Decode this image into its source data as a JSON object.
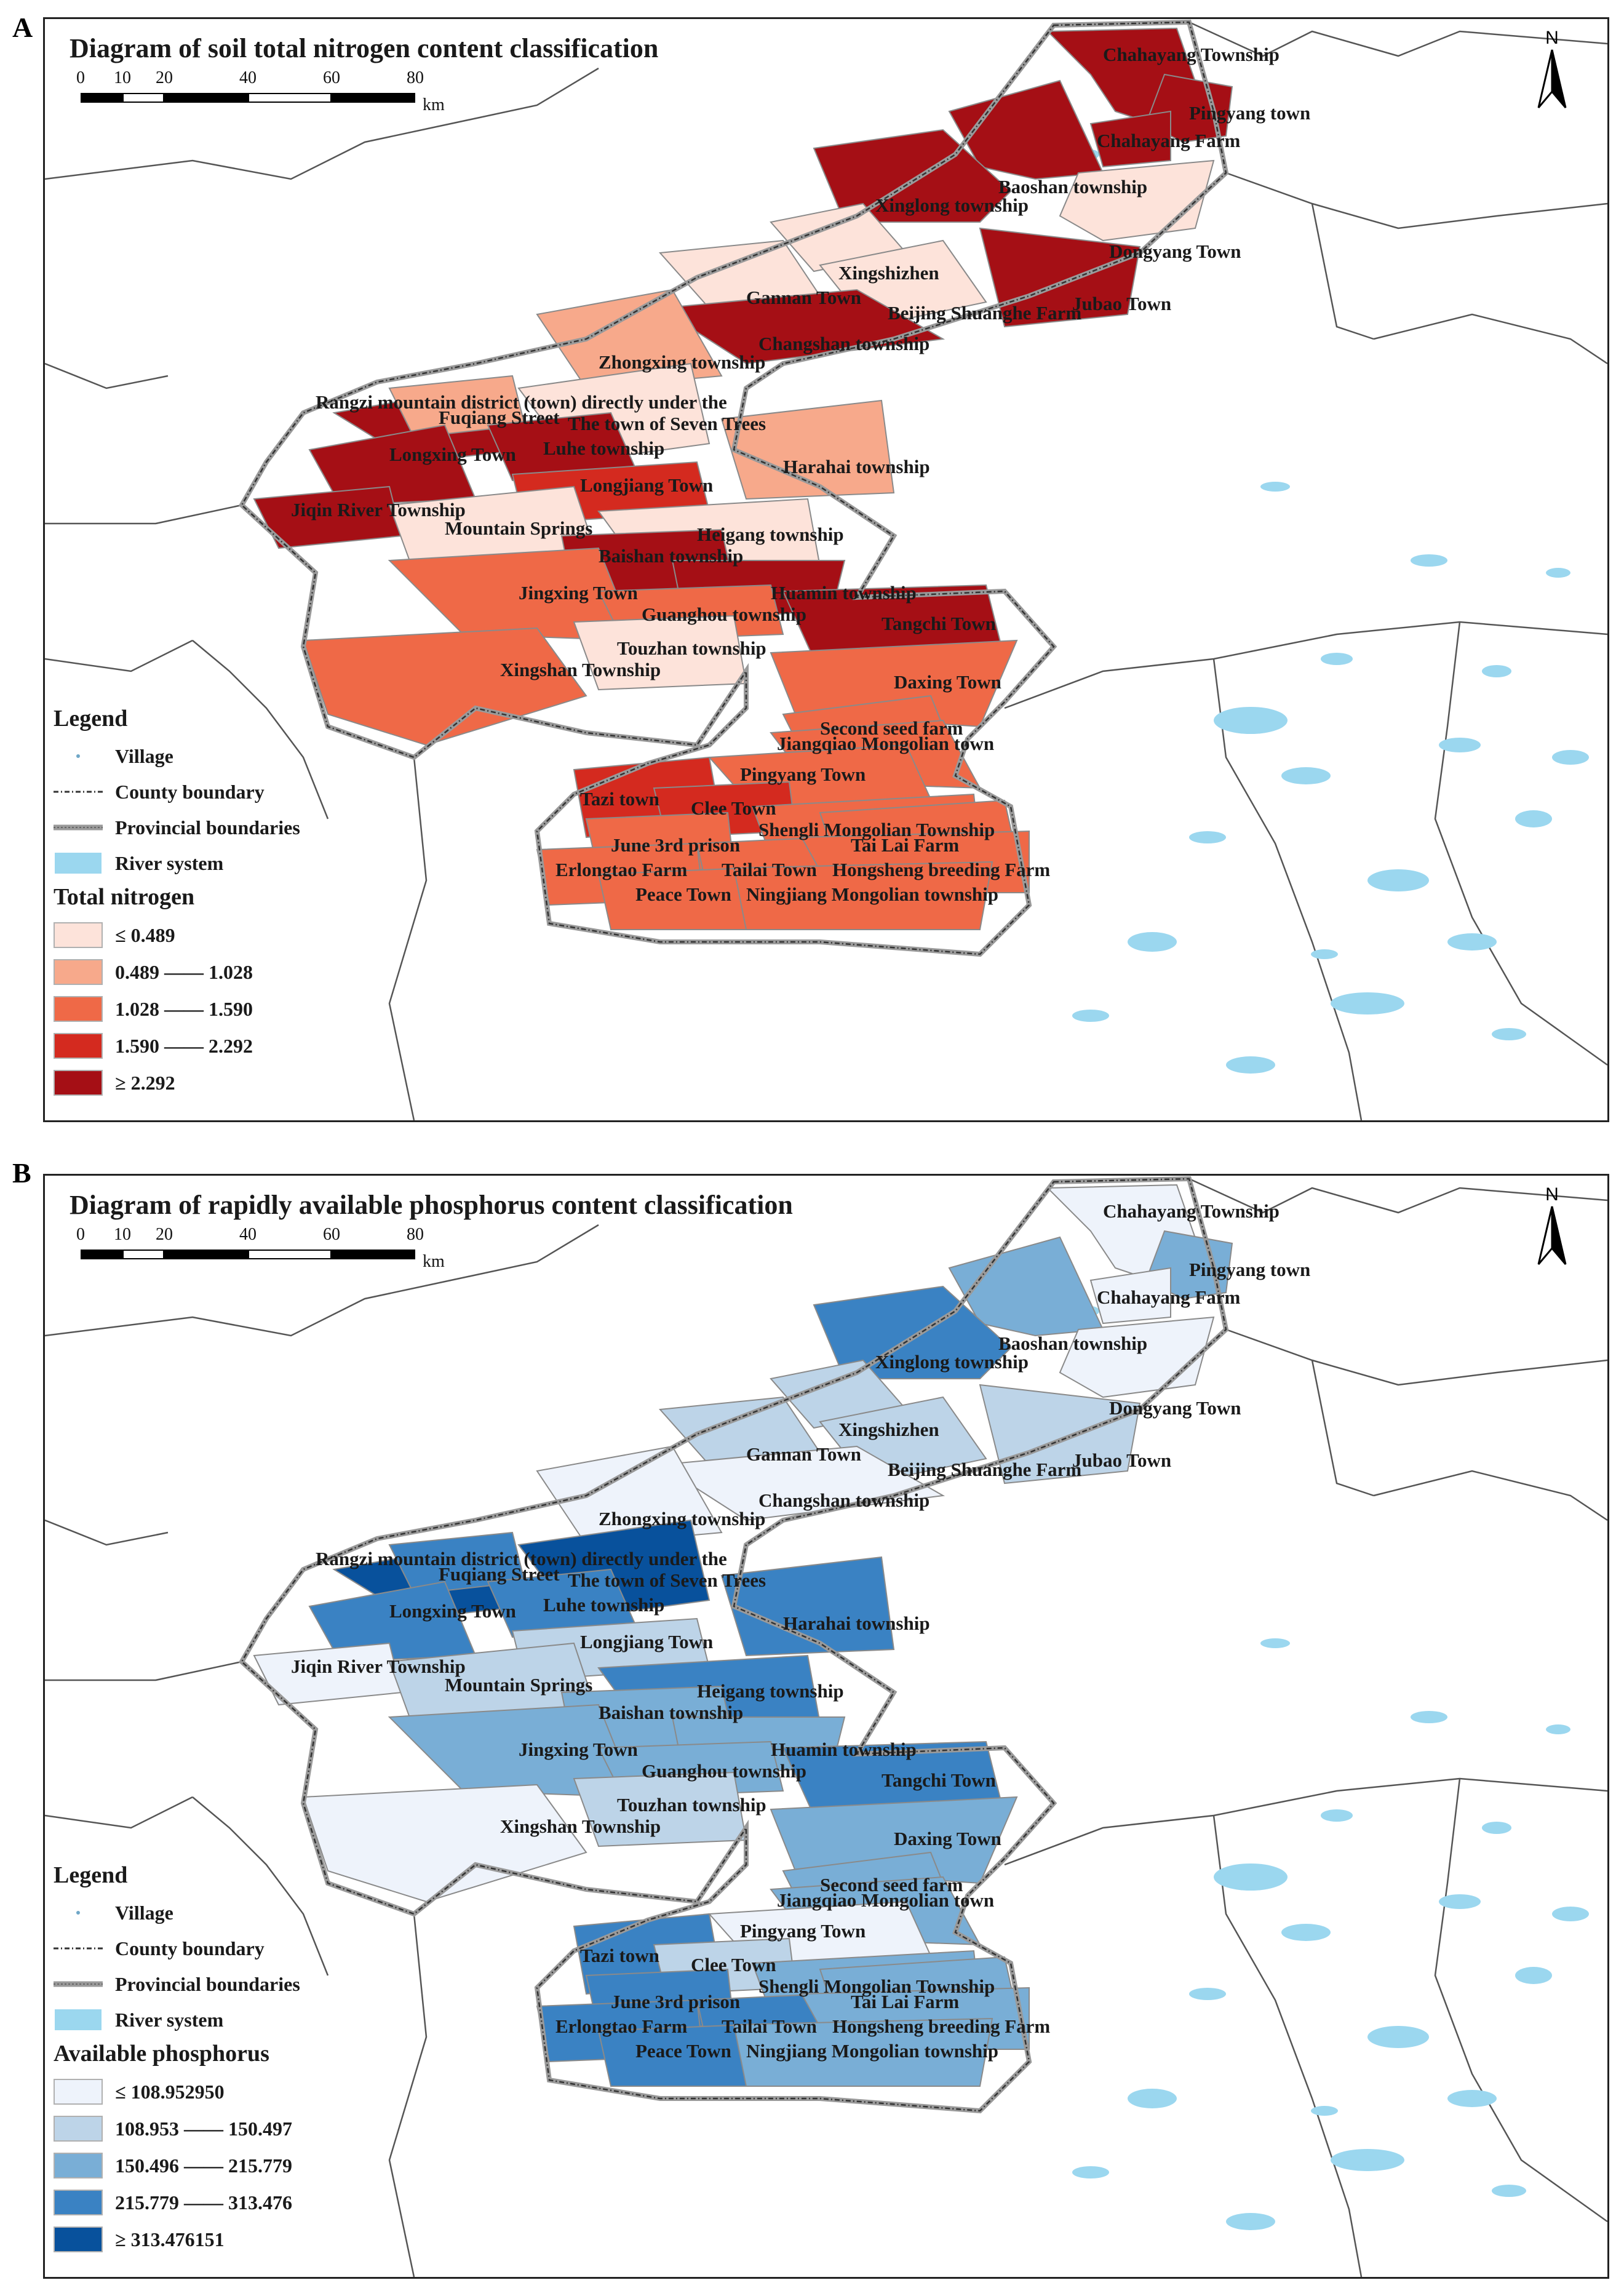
{
  "panels": [
    {
      "letter": "A",
      "title": "Diagram of soil total nitrogen content classification",
      "scale": {
        "ticks": [
          "0",
          "10",
          "20",
          "40",
          "60",
          "80"
        ],
        "unit": "km"
      },
      "north": "N",
      "legend": {
        "heading": "Legend",
        "items": [
          "Village",
          "County boundary",
          "Provincial boundaries",
          "River system"
        ],
        "class_title": "Total nitrogen",
        "classes": [
          "≤ 0.489",
          "0.489 —— 1.028",
          "1.028 —— 1.590",
          "1.590 —— 2.292",
          "≥ 2.292"
        ],
        "colors": [
          "#fde3da",
          "#f7a98b",
          "#ef6947",
          "#d42a1f",
          "#a50f15"
        ]
      }
    },
    {
      "letter": "B",
      "title": "Diagram of rapidly available phosphorus content classification",
      "scale": {
        "ticks": [
          "0",
          "10",
          "20",
          "40",
          "60",
          "80"
        ],
        "unit": "km"
      },
      "north": "N",
      "legend": {
        "heading": "Legend",
        "items": [
          "Village",
          "County boundary",
          "Provincial boundaries",
          "River system"
        ],
        "class_title": "Available phosphorus",
        "classes": [
          "≤ 108.952950",
          "108.953 —— 150.497",
          "150.496 —— 215.779",
          "215.779 —— 313.476",
          "≥ 313.476151"
        ],
        "colors": [
          "#eef3fb",
          "#bdd4e8",
          "#79aed6",
          "#3a82c3",
          "#08519c"
        ]
      }
    }
  ],
  "places": [
    "Chahayang Township",
    "Pingyang town",
    "Chahayang Farm",
    "Baoshan township",
    "Xinglong township",
    "Dongyang Town",
    "Xingshizhen",
    "Gannan Town",
    "Beijing Shuanghe Farm",
    "Jubao Town",
    "Changshan township",
    "Zhongxing township",
    "Rangzi mountain district (town) directly under the",
    "Fuqiang Street",
    "The town of Seven Trees",
    "Luhe township",
    "Longxing Town",
    "Harahai township",
    "Longjiang Town",
    "Jiqin River Township",
    "Mountain Springs",
    "Heigang township",
    "Baishan township",
    "Jingxing Town",
    "Huamin township",
    "Guanghou township",
    "Tangchi Town",
    "Touzhan township",
    "Xingshan Township",
    "Daxing Town",
    "Second seed farm",
    "Jiangqiao Mongolian town",
    "Pingyang Town",
    "Tazi town",
    "Clee Town",
    "Shengli Mongolian Township",
    "June 3rd prison",
    "Tai Lai Farm",
    "Erlongtao Farm",
    "Tailai Town",
    "Hongsheng breeding Farm",
    "Peace Town",
    "Ningjiang Mongolian township"
  ],
  "map_data": {
    "nitrogen_class": [
      5,
      5,
      5,
      5,
      5,
      1,
      1,
      1,
      1,
      5,
      5,
      2,
      5,
      2,
      1,
      5,
      5,
      2,
      4,
      5,
      1,
      1,
      5,
      3,
      5,
      3,
      5,
      1,
      3,
      3,
      3,
      3,
      3,
      4,
      4,
      3,
      3,
      3,
      3,
      3,
      3,
      3,
      3
    ],
    "phosphorus_class": [
      1,
      3,
      1,
      3,
      4,
      1,
      2,
      2,
      2,
      2,
      1,
      1,
      5,
      4,
      5,
      4,
      4,
      4,
      2,
      1,
      2,
      4,
      3,
      3,
      3,
      3,
      4,
      2,
      1,
      3,
      3,
      3,
      1,
      4,
      2,
      3,
      4,
      3,
      4,
      4,
      3,
      4,
      3
    ]
  }
}
